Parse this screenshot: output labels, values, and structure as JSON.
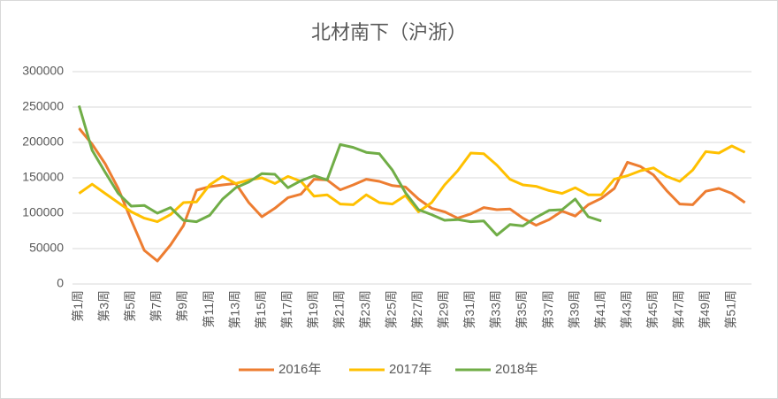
{
  "chart_data": {
    "type": "line",
    "title": "北材南下（沪浙）",
    "categories": [
      "第1周",
      null,
      "第3周",
      null,
      "第5周",
      null,
      "第7周",
      null,
      "第9周",
      null,
      "第11周",
      null,
      "第13周",
      null,
      "第15周",
      null,
      "第17周",
      null,
      "第19周",
      null,
      "第21周",
      null,
      "第23周",
      null,
      "第25周",
      null,
      "第27周",
      null,
      "第29周",
      null,
      "第31周",
      null,
      "第33周",
      null,
      "第35周",
      null,
      "第37周",
      null,
      "第39周",
      null,
      "第41周",
      null,
      "第43周",
      null,
      "第45周",
      null,
      "第47周",
      null,
      "第49周",
      null,
      "第51周",
      null
    ],
    "series": [
      {
        "name": "2016年",
        "color": "#ED7D31",
        "values": [
          220000,
          197500,
          170000,
          135000,
          90000,
          47500,
          32500,
          55000,
          82500,
          132500,
          137500,
          140000,
          142000,
          115000,
          95000,
          107000,
          122000,
          127000,
          148000,
          147000,
          133000,
          140000,
          148000,
          145000,
          139000,
          137000,
          120000,
          107000,
          102000,
          93000,
          99000,
          108000,
          105000,
          106000,
          93000,
          83000,
          91000,
          103000,
          96000,
          112000,
          121000,
          135000,
          172000,
          166000,
          154000,
          132000,
          113000,
          112000,
          131000,
          135000,
          128000,
          115000
        ]
      },
      {
        "name": "2017年",
        "color": "#FFC000",
        "values": [
          128000,
          141000,
          128000,
          115000,
          102000,
          93000,
          88000,
          98000,
          115000,
          116000,
          140000,
          152000,
          142000,
          147000,
          150000,
          142000,
          152000,
          145000,
          124000,
          126000,
          113000,
          112000,
          126000,
          115000,
          113000,
          125000,
          102000,
          115000,
          140000,
          160000,
          185000,
          184000,
          168000,
          148000,
          140000,
          138000,
          132000,
          128000,
          136000,
          126000,
          126000,
          148000,
          153000,
          160000,
          164000,
          152000,
          145000,
          161000,
          187000,
          185000,
          195000,
          186000
        ]
      },
      {
        "name": "2018年",
        "color": "#70AD47",
        "values": [
          252000,
          189000,
          158000,
          128000,
          110000,
          111000,
          100000,
          108000,
          90000,
          88000,
          97000,
          120000,
          136000,
          144000,
          156000,
          155000,
          136000,
          146000,
          153000,
          147000,
          197000,
          193000,
          186000,
          184000,
          161000,
          129000,
          105000,
          98000,
          90000,
          91000,
          88000,
          89000,
          69000,
          84000,
          82000,
          94000,
          104000,
          105000,
          120000,
          95000,
          89000,
          null,
          null,
          null,
          null,
          null,
          null,
          null,
          null,
          null,
          null,
          null
        ]
      }
    ],
    "ylim": [
      0,
      300000
    ],
    "yticks": [
      0,
      50000,
      100000,
      150000,
      200000,
      250000,
      300000
    ],
    "grid": true,
    "legend": "bottom"
  }
}
